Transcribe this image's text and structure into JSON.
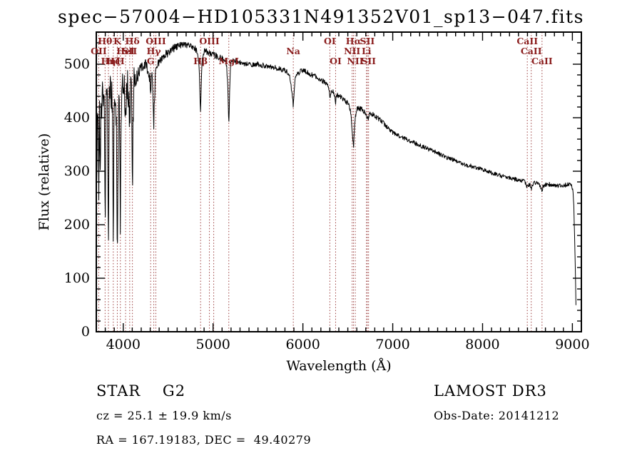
{
  "title": "spec−57004−HD105331N491352V01_sp13−047.fits",
  "footer": {
    "object_class": "STAR    G2",
    "survey": "LAMOST DR3",
    "cz": "cz = 25.1 ± 19.9 km/s",
    "obs_date": "Obs-Date: 20141212",
    "coords": "RA = 167.19183, DEC =  49.40279"
  },
  "chart_data": {
    "type": "line",
    "title": "spec−57004−HD105331N491352V01_sp13−047.fits",
    "xlabel": "Wavelength (Å)",
    "ylabel": "Flux (relative)",
    "xlim": [
      3700,
      9100
    ],
    "ylim": [
      0,
      560
    ],
    "xticks": [
      4000,
      5000,
      6000,
      7000,
      8000,
      9000
    ],
    "yticks": [
      0,
      100,
      200,
      300,
      400,
      500
    ],
    "x_minor_step": 100,
    "y_minor_step": 20,
    "grid": false,
    "legend": "none",
    "line_color": "#000000",
    "feature_color": "#8b1e1e",
    "features": [
      {
        "wl": 3727,
        "label": "OII",
        "row": 2
      },
      {
        "wl": 3798,
        "label": "Hθ",
        "row": 1
      },
      {
        "wl": 3835,
        "label": "Hη",
        "row": 3
      },
      {
        "wl": 3889,
        "label": "Hζ",
        "row": 3
      },
      {
        "wl": 3934,
        "label": "K",
        "row": 1
      },
      {
        "wl": 3968,
        "label": "H",
        "row": 3
      },
      {
        "wl": 4026,
        "label": "HeI",
        "row": 2
      },
      {
        "wl": 4072,
        "label": "SII",
        "row": 2
      },
      {
        "wl": 4102,
        "label": "Hδ",
        "row": 1
      },
      {
        "wl": 4305,
        "label": "G",
        "row": 3
      },
      {
        "wl": 4340,
        "label": "Hγ",
        "row": 2
      },
      {
        "wl": 4363,
        "label": "OIII",
        "row": 1
      },
      {
        "wl": 4861,
        "label": "Hβ",
        "row": 3
      },
      {
        "wl": 4959,
        "label": "OIII",
        "row": 1
      },
      {
        "wl": 5007,
        "label": "",
        "row": 1
      },
      {
        "wl": 5175,
        "label": "MgI",
        "row": 3
      },
      {
        "wl": 5893,
        "label": "Na",
        "row": 2
      },
      {
        "wl": 6300,
        "label": "OI",
        "row": 1
      },
      {
        "wl": 6364,
        "label": "OI",
        "row": 3
      },
      {
        "wl": 6548,
        "label": "NII",
        "row": 2
      },
      {
        "wl": 6563,
        "label": "Hα",
        "row": 1
      },
      {
        "wl": 6583,
        "label": "NII",
        "row": 3
      },
      {
        "wl": 6708,
        "label": "Li",
        "row": 2
      },
      {
        "wl": 6717,
        "label": "SII",
        "row": 1
      },
      {
        "wl": 6731,
        "label": "SII",
        "row": 3
      },
      {
        "wl": 8498,
        "label": "CaII",
        "row": 1
      },
      {
        "wl": 8542,
        "label": "CaII",
        "row": 2
      },
      {
        "wl": 8662,
        "label": "CaII",
        "row": 3
      }
    ],
    "series": [
      {
        "name": "spectrum",
        "control_points": [
          [
            3700,
            380
          ],
          [
            3705,
            225
          ],
          [
            3712,
            425
          ],
          [
            3720,
            390
          ],
          [
            3728,
            270
          ],
          [
            3736,
            432
          ],
          [
            3745,
            260
          ],
          [
            3752,
            440
          ],
          [
            3760,
            405
          ],
          [
            3770,
            450
          ],
          [
            3780,
            425
          ],
          [
            3790,
            447
          ],
          [
            3798,
            180
          ],
          [
            3806,
            432
          ],
          [
            3815,
            450
          ],
          [
            3826,
            415
          ],
          [
            3835,
            108
          ],
          [
            3843,
            423
          ],
          [
            3852,
            455
          ],
          [
            3862,
            432
          ],
          [
            3872,
            450
          ],
          [
            3880,
            414
          ],
          [
            3889,
            135
          ],
          [
            3897,
            396
          ],
          [
            3906,
            455
          ],
          [
            3915,
            441
          ],
          [
            3925,
            378
          ],
          [
            3934,
            99
          ],
          [
            3942,
            315
          ],
          [
            3950,
            441
          ],
          [
            3958,
            423
          ],
          [
            3964,
            297
          ],
          [
            3968,
            162
          ],
          [
            3974,
            360
          ],
          [
            3982,
            446
          ],
          [
            3990,
            459
          ],
          [
            4000,
            464
          ],
          [
            4010,
            455
          ],
          [
            4018,
            423
          ],
          [
            4026,
            374
          ],
          [
            4034,
            432
          ],
          [
            4045,
            461
          ],
          [
            4055,
            455
          ],
          [
            4064,
            423
          ],
          [
            4072,
            392
          ],
          [
            4080,
            441
          ],
          [
            4090,
            461
          ],
          [
            4096,
            396
          ],
          [
            4102,
            270
          ],
          [
            4110,
            405
          ],
          [
            4118,
            464
          ],
          [
            4130,
            468
          ],
          [
            4145,
            475
          ],
          [
            4160,
            479
          ],
          [
            4180,
            484
          ],
          [
            4200,
            491
          ],
          [
            4225,
            493
          ],
          [
            4250,
            497
          ],
          [
            4270,
            491
          ],
          [
            4288,
            486
          ],
          [
            4305,
            455
          ],
          [
            4320,
            488
          ],
          [
            4332,
            432
          ],
          [
            4340,
            392
          ],
          [
            4350,
            446
          ],
          [
            4362,
            493
          ],
          [
            4380,
            500
          ],
          [
            4400,
            504
          ],
          [
            4425,
            510
          ],
          [
            4450,
            515
          ],
          [
            4475,
            519
          ],
          [
            4500,
            522
          ],
          [
            4530,
            526
          ],
          [
            4560,
            529
          ],
          [
            4590,
            532
          ],
          [
            4620,
            534
          ],
          [
            4650,
            536
          ],
          [
            4680,
            537
          ],
          [
            4710,
            536
          ],
          [
            4740,
            534
          ],
          [
            4770,
            532
          ],
          [
            4800,
            530
          ],
          [
            4830,
            522
          ],
          [
            4845,
            491
          ],
          [
            4853,
            450
          ],
          [
            4861,
            407
          ],
          [
            4870,
            468
          ],
          [
            4880,
            513
          ],
          [
            4895,
            522
          ],
          [
            4910,
            524
          ],
          [
            4930,
            523
          ],
          [
            4950,
            521
          ],
          [
            4970,
            520
          ],
          [
            4990,
            519
          ],
          [
            5010,
            517
          ],
          [
            5050,
            514
          ],
          [
            5090,
            511
          ],
          [
            5130,
            508
          ],
          [
            5150,
            500
          ],
          [
            5165,
            455
          ],
          [
            5175,
            381
          ],
          [
            5185,
            455
          ],
          [
            5195,
            497
          ],
          [
            5210,
            506
          ],
          [
            5250,
            505
          ],
          [
            5290,
            503
          ],
          [
            5330,
            502
          ],
          [
            5370,
            501
          ],
          [
            5410,
            500
          ],
          [
            5450,
            499
          ],
          [
            5490,
            500
          ],
          [
            5530,
            499
          ],
          [
            5570,
            497
          ],
          [
            5610,
            496
          ],
          [
            5650,
            494
          ],
          [
            5690,
            493
          ],
          [
            5730,
            491
          ],
          [
            5770,
            490
          ],
          [
            5810,
            488
          ],
          [
            5850,
            481
          ],
          [
            5870,
            459
          ],
          [
            5885,
            437
          ],
          [
            5893,
            423
          ],
          [
            5901,
            446
          ],
          [
            5912,
            473
          ],
          [
            5930,
            481
          ],
          [
            5950,
            484
          ],
          [
            5970,
            486
          ],
          [
            5990,
            487
          ],
          [
            6010,
            487
          ],
          [
            6050,
            484
          ],
          [
            6090,
            481
          ],
          [
            6130,
            478
          ],
          [
            6170,
            474
          ],
          [
            6210,
            470
          ],
          [
            6250,
            465
          ],
          [
            6280,
            459
          ],
          [
            6295,
            446
          ],
          [
            6300,
            437
          ],
          [
            6307,
            446
          ],
          [
            6320,
            453
          ],
          [
            6340,
            448
          ],
          [
            6355,
            439
          ],
          [
            6364,
            430
          ],
          [
            6372,
            439
          ],
          [
            6385,
            443
          ],
          [
            6400,
            441
          ],
          [
            6430,
            437
          ],
          [
            6460,
            433
          ],
          [
            6490,
            428
          ],
          [
            6515,
            423
          ],
          [
            6530,
            414
          ],
          [
            6542,
            394
          ],
          [
            6548,
            378
          ],
          [
            6555,
            363
          ],
          [
            6563,
            342
          ],
          [
            6571,
            376
          ],
          [
            6580,
            392
          ],
          [
            6590,
            410
          ],
          [
            6605,
            417
          ],
          [
            6620,
            419
          ],
          [
            6650,
            416
          ],
          [
            6680,
            412
          ],
          [
            6700,
            407
          ],
          [
            6708,
            400
          ],
          [
            6717,
            395
          ],
          [
            6725,
            401
          ],
          [
            6731,
            397
          ],
          [
            6740,
            407
          ],
          [
            6760,
            407
          ],
          [
            6790,
            405
          ],
          [
            6820,
            401
          ],
          [
            6850,
            397
          ],
          [
            6880,
            392
          ],
          [
            6910,
            387
          ],
          [
            6940,
            382
          ],
          [
            6970,
            377
          ],
          [
            7000,
            372
          ],
          [
            7040,
            369
          ],
          [
            7080,
            365
          ],
          [
            7120,
            362
          ],
          [
            7160,
            359
          ],
          [
            7200,
            356
          ],
          [
            7240,
            353
          ],
          [
            7280,
            350
          ],
          [
            7320,
            347
          ],
          [
            7360,
            344
          ],
          [
            7400,
            341
          ],
          [
            7440,
            338
          ],
          [
            7480,
            336
          ],
          [
            7520,
            332
          ],
          [
            7560,
            329
          ],
          [
            7600,
            326
          ],
          [
            7640,
            323
          ],
          [
            7680,
            321
          ],
          [
            7720,
            318
          ],
          [
            7760,
            316
          ],
          [
            7800,
            313
          ],
          [
            7840,
            311
          ],
          [
            7880,
            309
          ],
          [
            7920,
            307
          ],
          [
            7960,
            305
          ],
          [
            8000,
            303
          ],
          [
            8040,
            300
          ],
          [
            8080,
            298
          ],
          [
            8120,
            296
          ],
          [
            8160,
            294
          ],
          [
            8200,
            292
          ],
          [
            8240,
            290
          ],
          [
            8280,
            288
          ],
          [
            8320,
            287
          ],
          [
            8360,
            285
          ],
          [
            8400,
            284
          ],
          [
            8440,
            282
          ],
          [
            8470,
            280
          ],
          [
            8485,
            276
          ],
          [
            8498,
            269
          ],
          [
            8510,
            275
          ],
          [
            8525,
            275
          ],
          [
            8535,
            272
          ],
          [
            8542,
            267
          ],
          [
            8552,
            274
          ],
          [
            8570,
            277
          ],
          [
            8590,
            278
          ],
          [
            8610,
            277
          ],
          [
            8635,
            273
          ],
          [
            8650,
            268
          ],
          [
            8662,
            262
          ],
          [
            8672,
            271
          ],
          [
            8690,
            274
          ],
          [
            8720,
            276
          ],
          [
            8760,
            275
          ],
          [
            8800,
            274
          ],
          [
            8840,
            273
          ],
          [
            8880,
            273
          ],
          [
            8920,
            274
          ],
          [
            8950,
            276
          ],
          [
            8975,
            275
          ],
          [
            8995,
            271
          ],
          [
            9005,
            264
          ],
          [
            9015,
            240
          ],
          [
            9025,
            180
          ],
          [
            9035,
            105
          ],
          [
            9042,
            30
          ]
        ]
      }
    ],
    "noise_segments": [
      [
        3700,
        4120,
        32
      ],
      [
        4120,
        4360,
        13
      ],
      [
        4360,
        4600,
        8
      ],
      [
        4600,
        5100,
        6
      ],
      [
        5100,
        5900,
        5
      ],
      [
        5900,
        6900,
        5
      ],
      [
        6900,
        7800,
        4
      ],
      [
        7800,
        9045,
        4
      ]
    ],
    "noise_seed": 20141212
  }
}
